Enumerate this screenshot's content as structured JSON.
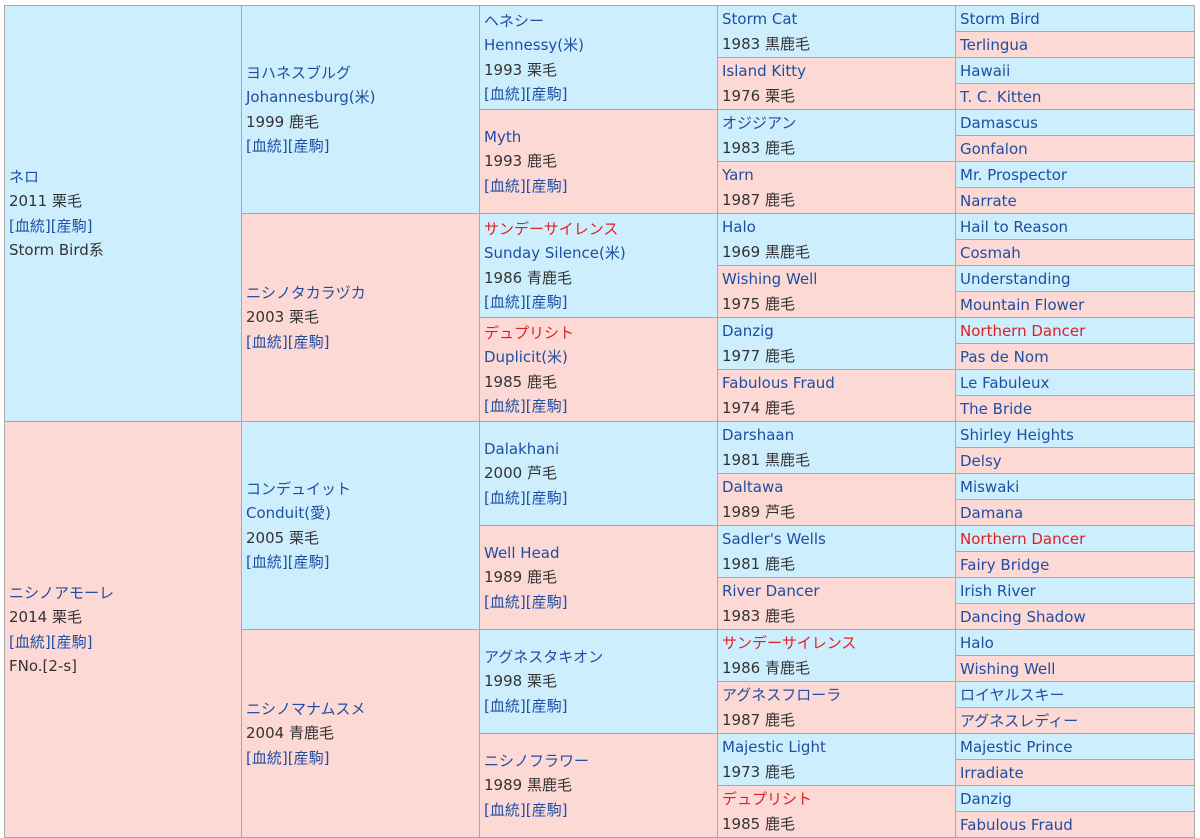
{
  "colors": {
    "male_bg": "#cdeffd",
    "female_bg": "#fcd9d5",
    "link": "#1f4ea2",
    "highlight": "#e02020",
    "text": "#333333",
    "border": "#a9a9a9"
  },
  "links": {
    "bloodline": "[血統]",
    "offspring": "[産駒]"
  },
  "sire": {
    "name": "ネロ",
    "detail": "2011 栗毛",
    "extra": "Storm Bird系",
    "sire": {
      "name": "ヨハネスブルグ",
      "alt": "Johannesburg(米)",
      "detail": "1999 鹿毛",
      "sire": {
        "name": "ヘネシー",
        "alt": "Hennessy(米)",
        "detail": "1993 栗毛",
        "sire": {
          "name": "Storm Cat",
          "detail": "1983 黒鹿毛",
          "sire": "Storm Bird",
          "dam": "Terlingua"
        },
        "dam": {
          "name": "Island Kitty",
          "detail": "1976 栗毛",
          "sire": "Hawaii",
          "dam": "T. C. Kitten"
        }
      },
      "dam": {
        "name": "Myth",
        "detail": "1993 鹿毛",
        "sire": {
          "name": "オジジアン",
          "detail": "1983 鹿毛",
          "sire": "Damascus",
          "dam": "Gonfalon"
        },
        "dam": {
          "name": "Yarn",
          "detail": "1987 鹿毛",
          "sire": "Mr. Prospector",
          "dam": "Narrate"
        }
      }
    },
    "dam": {
      "name": "ニシノタカラヅカ",
      "detail": "2003 栗毛",
      "sire": {
        "name": "サンデーサイレンス",
        "alt": "Sunday Silence(米)",
        "detail": "1986 青鹿毛",
        "sire": {
          "name": "Halo",
          "detail": "1969 黒鹿毛",
          "sire": "Hail to Reason",
          "dam": "Cosmah"
        },
        "dam": {
          "name": "Wishing Well",
          "detail": "1975 鹿毛",
          "sire": "Understanding",
          "dam": "Mountain Flower"
        }
      },
      "dam": {
        "name": "デュプリシト",
        "alt": "Duplicit(米)",
        "detail": "1985 鹿毛",
        "sire": {
          "name": "Danzig",
          "detail": "1977 鹿毛",
          "sire": "Northern Dancer",
          "dam": "Pas de Nom"
        },
        "dam": {
          "name": "Fabulous Fraud",
          "detail": "1974 鹿毛",
          "sire": "Le Fabuleux",
          "dam": "The Bride"
        }
      }
    }
  },
  "dam": {
    "name": "ニシノアモーレ",
    "detail": "2014 栗毛",
    "extra": "FNo.[2-s]",
    "sire": {
      "name": "コンデュイット",
      "alt": "Conduit(愛)",
      "detail": "2005 栗毛",
      "sire": {
        "name": "Dalakhani",
        "detail": "2000 芦毛",
        "sire": {
          "name": "Darshaan",
          "detail": "1981 黒鹿毛",
          "sire": "Shirley Heights",
          "dam": "Delsy"
        },
        "dam": {
          "name": "Daltawa",
          "detail": "1989 芦毛",
          "sire": "Miswaki",
          "dam": "Damana"
        }
      },
      "dam": {
        "name": "Well Head",
        "detail": "1989 鹿毛",
        "sire": {
          "name": "Sadler's Wells",
          "detail": "1981 鹿毛",
          "sire": "Northern Dancer",
          "dam": "Fairy Bridge"
        },
        "dam": {
          "name": "River Dancer",
          "detail": "1983 鹿毛",
          "sire": "Irish River",
          "dam": "Dancing Shadow"
        }
      }
    },
    "dam": {
      "name": "ニシノマナムスメ",
      "detail": "2004 青鹿毛",
      "sire": {
        "name": "アグネスタキオン",
        "detail": "1998 栗毛",
        "sire": {
          "name": "サンデーサイレンス",
          "detail": "1986 青鹿毛",
          "sire": "Halo",
          "dam": "Wishing Well"
        },
        "dam": {
          "name": "アグネスフローラ",
          "detail": "1987 鹿毛",
          "sire": "ロイヤルスキー",
          "dam": "アグネスレディー"
        }
      },
      "dam": {
        "name": "ニシノフラワー",
        "detail": "1989 黒鹿毛",
        "sire": {
          "name": "Majestic Light",
          "detail": "1973 鹿毛",
          "sire": "Majestic Prince",
          "dam": "Irradiate"
        },
        "dam": {
          "name": "デュプリシト",
          "detail": "1985 鹿毛",
          "sire": "Danzig",
          "dam": "Fabulous Fraud"
        }
      }
    }
  }
}
